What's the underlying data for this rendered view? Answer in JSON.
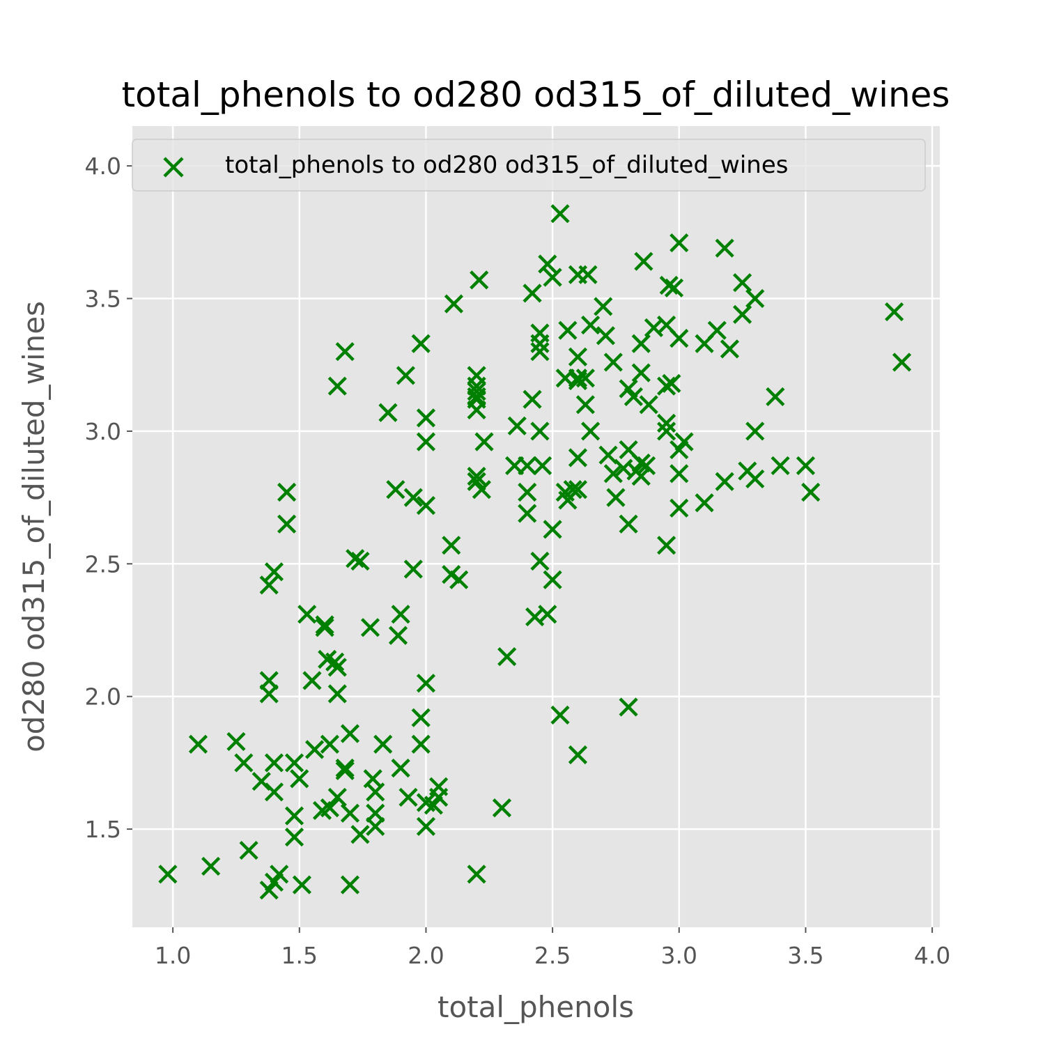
{
  "chart_data": {
    "type": "scatter",
    "title": "total_phenols to od280 od315_of_diluted_wines",
    "xlabel": "total_phenols",
    "ylabel": "od280 od315_of_diluted_wines",
    "xlim": [
      0.84,
      4.03
    ],
    "ylim": [
      1.13,
      4.15
    ],
    "xticks": [
      "1.0",
      "1.5",
      "2.0",
      "2.5",
      "3.0",
      "3.5",
      "4.0"
    ],
    "yticks": [
      "1.5",
      "2.0",
      "2.5",
      "3.0",
      "3.5",
      "4.0"
    ],
    "grid": true,
    "legend": {
      "position": "top",
      "labels": [
        "total_phenols to od280 od315_of_diluted_wines"
      ]
    },
    "colors": {
      "marker": "#008000",
      "plot_bg": "#e5e5e5",
      "grid": "#ffffff"
    },
    "series": [
      {
        "name": "total_phenols to od280 od315_of_diluted_wines",
        "marker": "x",
        "points": [
          [
            0.98,
            1.33
          ],
          [
            1.1,
            1.82
          ],
          [
            1.15,
            1.36
          ],
          [
            1.25,
            1.83
          ],
          [
            1.28,
            1.75
          ],
          [
            1.3,
            1.42
          ],
          [
            1.35,
            1.68
          ],
          [
            1.38,
            1.27
          ],
          [
            1.38,
            2.06
          ],
          [
            1.38,
            2.01
          ],
          [
            1.38,
            2.42
          ],
          [
            1.4,
            2.47
          ],
          [
            1.4,
            1.75
          ],
          [
            1.4,
            1.64
          ],
          [
            1.4,
            1.3
          ],
          [
            1.42,
            1.33
          ],
          [
            1.45,
            2.77
          ],
          [
            1.45,
            2.65
          ],
          [
            1.48,
            1.75
          ],
          [
            1.48,
            1.55
          ],
          [
            1.48,
            1.47
          ],
          [
            1.5,
            1.69
          ],
          [
            1.51,
            1.29
          ],
          [
            1.53,
            2.31
          ],
          [
            1.55,
            2.06
          ],
          [
            1.56,
            1.8
          ],
          [
            1.59,
            1.57
          ],
          [
            1.6,
            2.27
          ],
          [
            1.6,
            2.26
          ],
          [
            1.61,
            2.14
          ],
          [
            1.62,
            1.82
          ],
          [
            1.62,
            1.58
          ],
          [
            1.64,
            2.13
          ],
          [
            1.65,
            3.17
          ],
          [
            1.65,
            2.11
          ],
          [
            1.65,
            2.01
          ],
          [
            1.65,
            1.62
          ],
          [
            1.68,
            3.3
          ],
          [
            1.68,
            1.73
          ],
          [
            1.68,
            1.72
          ],
          [
            1.7,
            1.86
          ],
          [
            1.7,
            1.56
          ],
          [
            1.7,
            1.29
          ],
          [
            1.72,
            2.52
          ],
          [
            1.74,
            2.51
          ],
          [
            1.74,
            1.48
          ],
          [
            1.78,
            2.26
          ],
          [
            1.79,
            1.69
          ],
          [
            1.8,
            1.64
          ],
          [
            1.8,
            1.56
          ],
          [
            1.8,
            1.51
          ],
          [
            1.83,
            1.82
          ],
          [
            1.85,
            3.07
          ],
          [
            1.88,
            2.78
          ],
          [
            1.89,
            2.23
          ],
          [
            1.9,
            2.31
          ],
          [
            1.9,
            1.73
          ],
          [
            1.92,
            3.21
          ],
          [
            1.93,
            1.62
          ],
          [
            1.95,
            2.75
          ],
          [
            1.95,
            2.48
          ],
          [
            1.98,
            3.33
          ],
          [
            1.98,
            1.92
          ],
          [
            1.98,
            1.82
          ],
          [
            2.0,
            3.05
          ],
          [
            2.0,
            2.96
          ],
          [
            2.0,
            2.72
          ],
          [
            2.0,
            2.05
          ],
          [
            2.0,
            1.6
          ],
          [
            2.0,
            1.51
          ],
          [
            2.03,
            1.59
          ],
          [
            2.05,
            1.66
          ],
          [
            2.05,
            1.62
          ],
          [
            2.1,
            2.57
          ],
          [
            2.1,
            2.46
          ],
          [
            2.11,
            3.48
          ],
          [
            2.13,
            2.44
          ],
          [
            2.2,
            3.21
          ],
          [
            2.2,
            3.17
          ],
          [
            2.2,
            3.15
          ],
          [
            2.2,
            3.13
          ],
          [
            2.2,
            3.12
          ],
          [
            2.2,
            3.08
          ],
          [
            2.2,
            2.83
          ],
          [
            2.2,
            2.81
          ],
          [
            2.2,
            1.33
          ],
          [
            2.21,
            3.57
          ],
          [
            2.22,
            2.78
          ],
          [
            2.23,
            2.96
          ],
          [
            2.3,
            1.58
          ],
          [
            2.32,
            2.15
          ],
          [
            2.35,
            2.87
          ],
          [
            2.36,
            3.02
          ],
          [
            2.4,
            2.87
          ],
          [
            2.4,
            2.77
          ],
          [
            2.4,
            2.69
          ],
          [
            2.42,
            3.52
          ],
          [
            2.42,
            3.12
          ],
          [
            2.43,
            2.3
          ],
          [
            2.45,
            3.37
          ],
          [
            2.45,
            3.33
          ],
          [
            2.45,
            3.3
          ],
          [
            2.45,
            3.0
          ],
          [
            2.45,
            2.51
          ],
          [
            2.46,
            2.87
          ],
          [
            2.48,
            3.63
          ],
          [
            2.48,
            2.31
          ],
          [
            2.5,
            3.58
          ],
          [
            2.5,
            2.63
          ],
          [
            2.5,
            2.44
          ],
          [
            2.53,
            3.82
          ],
          [
            2.53,
            1.93
          ],
          [
            2.55,
            3.2
          ],
          [
            2.55,
            2.77
          ],
          [
            2.56,
            3.38
          ],
          [
            2.56,
            2.74
          ],
          [
            2.58,
            2.78
          ],
          [
            2.6,
            3.59
          ],
          [
            2.6,
            3.28
          ],
          [
            2.6,
            3.2
          ],
          [
            2.6,
            3.19
          ],
          [
            2.6,
            2.9
          ],
          [
            2.6,
            2.78
          ],
          [
            2.6,
            1.78
          ],
          [
            2.63,
            3.2
          ],
          [
            2.63,
            3.1
          ],
          [
            2.64,
            3.59
          ],
          [
            2.65,
            3.4
          ],
          [
            2.65,
            3.0
          ],
          [
            2.7,
            3.47
          ],
          [
            2.71,
            3.36
          ],
          [
            2.72,
            2.91
          ],
          [
            2.74,
            3.26
          ],
          [
            2.74,
            2.84
          ],
          [
            2.75,
            2.75
          ],
          [
            2.78,
            2.86
          ],
          [
            2.8,
            3.16
          ],
          [
            2.8,
            2.93
          ],
          [
            2.8,
            2.65
          ],
          [
            2.8,
            1.96
          ],
          [
            2.82,
            3.13
          ],
          [
            2.83,
            2.85
          ],
          [
            2.85,
            3.33
          ],
          [
            2.85,
            3.22
          ],
          [
            2.85,
            2.88
          ],
          [
            2.85,
            2.83
          ],
          [
            2.86,
            3.64
          ],
          [
            2.87,
            2.87
          ],
          [
            2.88,
            3.1
          ],
          [
            2.9,
            3.39
          ],
          [
            2.95,
            3.4
          ],
          [
            2.95,
            3.17
          ],
          [
            2.95,
            3.03
          ],
          [
            2.95,
            3.0
          ],
          [
            2.95,
            2.57
          ],
          [
            2.96,
            3.55
          ],
          [
            2.97,
            3.18
          ],
          [
            2.98,
            3.54
          ],
          [
            3.0,
            3.71
          ],
          [
            3.0,
            3.35
          ],
          [
            3.0,
            2.93
          ],
          [
            3.0,
            2.84
          ],
          [
            3.0,
            2.71
          ],
          [
            3.02,
            2.96
          ],
          [
            3.1,
            3.33
          ],
          [
            3.1,
            2.73
          ],
          [
            3.15,
            3.38
          ],
          [
            3.18,
            3.69
          ],
          [
            3.18,
            2.81
          ],
          [
            3.2,
            3.31
          ],
          [
            3.25,
            3.56
          ],
          [
            3.25,
            3.44
          ],
          [
            3.27,
            2.85
          ],
          [
            3.3,
            3.5
          ],
          [
            3.3,
            3.0
          ],
          [
            3.3,
            2.82
          ],
          [
            3.38,
            3.13
          ],
          [
            3.4,
            2.87
          ],
          [
            3.5,
            2.87
          ],
          [
            3.52,
            2.77
          ],
          [
            3.85,
            3.45
          ],
          [
            3.88,
            3.26
          ]
        ]
      }
    ]
  }
}
